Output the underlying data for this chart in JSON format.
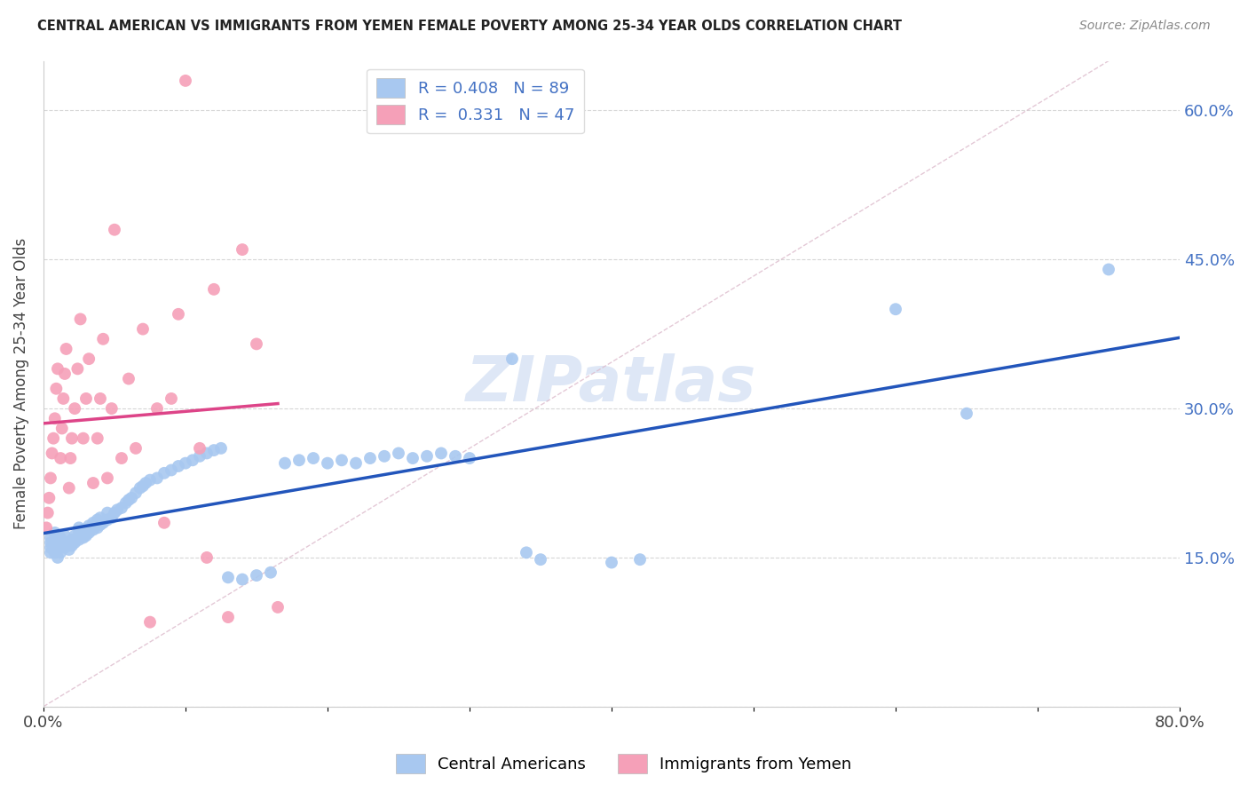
{
  "title": "CENTRAL AMERICAN VS IMMIGRANTS FROM YEMEN FEMALE POVERTY AMONG 25-34 YEAR OLDS CORRELATION CHART",
  "source": "Source: ZipAtlas.com",
  "ylabel": "Female Poverty Among 25-34 Year Olds",
  "xlim": [
    0.0,
    0.8
  ],
  "ylim": [
    0.0,
    0.65
  ],
  "xticks": [
    0.0,
    0.1,
    0.2,
    0.3,
    0.4,
    0.5,
    0.6,
    0.7,
    0.8
  ],
  "xticklabels": [
    "0.0%",
    "",
    "",
    "",
    "",
    "",
    "",
    "",
    "80.0%"
  ],
  "yticks": [
    0.0,
    0.15,
    0.3,
    0.45,
    0.6
  ],
  "yticklabels_right": [
    "",
    "15.0%",
    "30.0%",
    "45.0%",
    "60.0%"
  ],
  "watermark": "ZIPatlas",
  "legend_labels": [
    "Central Americans",
    "Immigrants from Yemen"
  ],
  "R_blue": "0.408",
  "N_blue": "89",
  "R_pink": "0.331",
  "N_pink": "47",
  "blue_color": "#A8C8F0",
  "pink_color": "#F5A0B8",
  "blue_line_color": "#2255BB",
  "pink_line_color": "#DD4488",
  "ref_line_color": "#DDBBCC",
  "scatter_blue": [
    [
      0.005,
      0.155
    ],
    [
      0.005,
      0.16
    ],
    [
      0.005,
      0.165
    ],
    [
      0.005,
      0.17
    ],
    [
      0.008,
      0.155
    ],
    [
      0.008,
      0.16
    ],
    [
      0.008,
      0.165
    ],
    [
      0.008,
      0.175
    ],
    [
      0.01,
      0.15
    ],
    [
      0.01,
      0.158
    ],
    [
      0.01,
      0.163
    ],
    [
      0.01,
      0.17
    ],
    [
      0.012,
      0.155
    ],
    [
      0.012,
      0.16
    ],
    [
      0.012,
      0.17
    ],
    [
      0.015,
      0.16
    ],
    [
      0.015,
      0.165
    ],
    [
      0.015,
      0.172
    ],
    [
      0.018,
      0.158
    ],
    [
      0.018,
      0.165
    ],
    [
      0.02,
      0.162
    ],
    [
      0.02,
      0.168
    ],
    [
      0.022,
      0.165
    ],
    [
      0.022,
      0.172
    ],
    [
      0.025,
      0.168
    ],
    [
      0.025,
      0.175
    ],
    [
      0.025,
      0.18
    ],
    [
      0.028,
      0.17
    ],
    [
      0.028,
      0.178
    ],
    [
      0.03,
      0.172
    ],
    [
      0.03,
      0.178
    ],
    [
      0.032,
      0.175
    ],
    [
      0.032,
      0.182
    ],
    [
      0.035,
      0.178
    ],
    [
      0.035,
      0.185
    ],
    [
      0.038,
      0.18
    ],
    [
      0.038,
      0.188
    ],
    [
      0.04,
      0.183
    ],
    [
      0.04,
      0.19
    ],
    [
      0.042,
      0.185
    ],
    [
      0.045,
      0.188
    ],
    [
      0.045,
      0.195
    ],
    [
      0.048,
      0.19
    ],
    [
      0.05,
      0.195
    ],
    [
      0.052,
      0.198
    ],
    [
      0.055,
      0.2
    ],
    [
      0.058,
      0.205
    ],
    [
      0.06,
      0.208
    ],
    [
      0.062,
      0.21
    ],
    [
      0.065,
      0.215
    ],
    [
      0.068,
      0.22
    ],
    [
      0.07,
      0.222
    ],
    [
      0.072,
      0.225
    ],
    [
      0.075,
      0.228
    ],
    [
      0.08,
      0.23
    ],
    [
      0.085,
      0.235
    ],
    [
      0.09,
      0.238
    ],
    [
      0.095,
      0.242
    ],
    [
      0.1,
      0.245
    ],
    [
      0.105,
      0.248
    ],
    [
      0.11,
      0.252
    ],
    [
      0.115,
      0.255
    ],
    [
      0.12,
      0.258
    ],
    [
      0.125,
      0.26
    ],
    [
      0.13,
      0.13
    ],
    [
      0.14,
      0.128
    ],
    [
      0.15,
      0.132
    ],
    [
      0.16,
      0.135
    ],
    [
      0.17,
      0.245
    ],
    [
      0.18,
      0.248
    ],
    [
      0.19,
      0.25
    ],
    [
      0.2,
      0.245
    ],
    [
      0.21,
      0.248
    ],
    [
      0.22,
      0.245
    ],
    [
      0.23,
      0.25
    ],
    [
      0.24,
      0.252
    ],
    [
      0.25,
      0.255
    ],
    [
      0.26,
      0.25
    ],
    [
      0.27,
      0.252
    ],
    [
      0.28,
      0.255
    ],
    [
      0.29,
      0.252
    ],
    [
      0.3,
      0.25
    ],
    [
      0.33,
      0.35
    ],
    [
      0.34,
      0.155
    ],
    [
      0.35,
      0.148
    ],
    [
      0.4,
      0.145
    ],
    [
      0.42,
      0.148
    ],
    [
      0.6,
      0.4
    ],
    [
      0.65,
      0.295
    ],
    [
      0.75,
      0.44
    ]
  ],
  "scatter_pink": [
    [
      0.002,
      0.18
    ],
    [
      0.003,
      0.195
    ],
    [
      0.004,
      0.21
    ],
    [
      0.005,
      0.23
    ],
    [
      0.006,
      0.255
    ],
    [
      0.007,
      0.27
    ],
    [
      0.008,
      0.29
    ],
    [
      0.009,
      0.32
    ],
    [
      0.01,
      0.34
    ],
    [
      0.012,
      0.25
    ],
    [
      0.013,
      0.28
    ],
    [
      0.014,
      0.31
    ],
    [
      0.015,
      0.335
    ],
    [
      0.016,
      0.36
    ],
    [
      0.018,
      0.22
    ],
    [
      0.019,
      0.25
    ],
    [
      0.02,
      0.27
    ],
    [
      0.022,
      0.3
    ],
    [
      0.024,
      0.34
    ],
    [
      0.026,
      0.39
    ],
    [
      0.028,
      0.27
    ],
    [
      0.03,
      0.31
    ],
    [
      0.032,
      0.35
    ],
    [
      0.035,
      0.225
    ],
    [
      0.038,
      0.27
    ],
    [
      0.04,
      0.31
    ],
    [
      0.042,
      0.37
    ],
    [
      0.045,
      0.23
    ],
    [
      0.048,
      0.3
    ],
    [
      0.05,
      0.48
    ],
    [
      0.055,
      0.25
    ],
    [
      0.06,
      0.33
    ],
    [
      0.065,
      0.26
    ],
    [
      0.07,
      0.38
    ],
    [
      0.075,
      0.085
    ],
    [
      0.08,
      0.3
    ],
    [
      0.085,
      0.185
    ],
    [
      0.09,
      0.31
    ],
    [
      0.095,
      0.395
    ],
    [
      0.1,
      0.63
    ],
    [
      0.11,
      0.26
    ],
    [
      0.115,
      0.15
    ],
    [
      0.12,
      0.42
    ],
    [
      0.13,
      0.09
    ],
    [
      0.14,
      0.46
    ],
    [
      0.15,
      0.365
    ],
    [
      0.165,
      0.1
    ]
  ]
}
